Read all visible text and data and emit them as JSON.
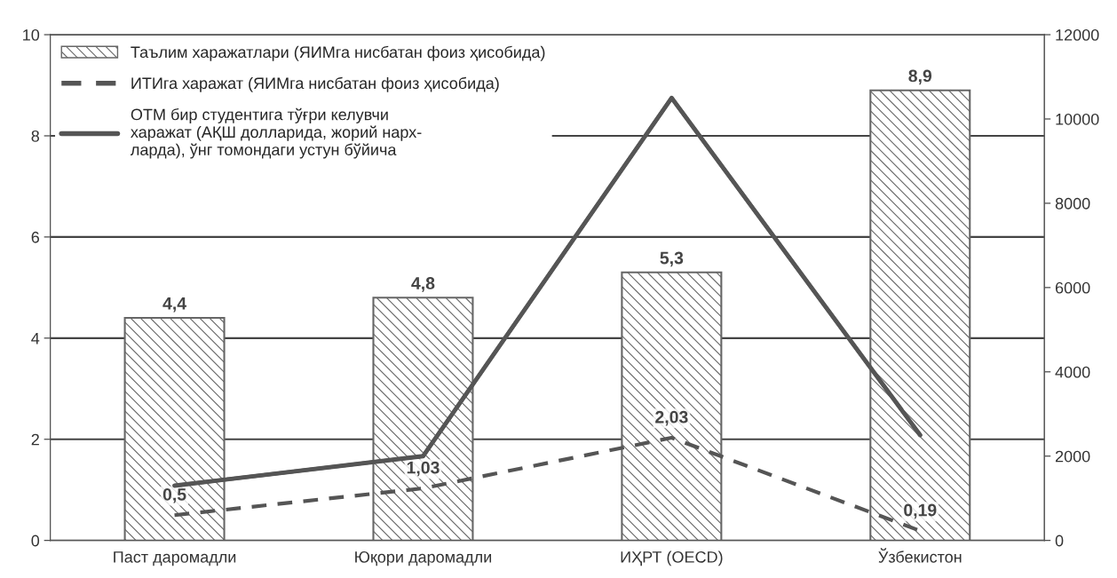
{
  "chart_data": {
    "type": "bar",
    "categories": [
      "Паст даромадли",
      "Юқори даромадли",
      "ИҲРТ (OECD)",
      "Ўзбекистон"
    ],
    "series": [
      {
        "name": "Таълим харажатлари (ЯИМга нисбатан фоиз ҳисобида)",
        "type": "bar",
        "color": "#666666",
        "values": [
          4.4,
          4.8,
          5.3,
          8.9
        ],
        "value_labels": [
          "4,4",
          "4,8",
          "5,3",
          "8,9"
        ]
      },
      {
        "name": "ИТИга харажат (ЯИМга нисбатан фоиз ҳисобида)",
        "type": "line",
        "line_style": "dashed",
        "color": "#555555",
        "values": [
          0.5,
          1.03,
          2.03,
          0.19
        ],
        "value_labels": [
          "0,5",
          "1,03",
          "2,03",
          "0,19"
        ]
      },
      {
        "name": "ОТМ бир студентига тўғри келувчи\nхаражат (АҚШ долларида, жорий нарх-\nларда), ўнг томондаги устун бўйича",
        "type": "line",
        "line_style": "solid",
        "axis": "y2",
        "color": "#555555",
        "values": [
          1300,
          2000,
          10500,
          2500
        ]
      }
    ],
    "ylim": [
      0,
      10
    ],
    "yticks": [
      0,
      2,
      4,
      6,
      8,
      10
    ],
    "y2lim": [
      0,
      12000
    ],
    "y2ticks": [
      0,
      2000,
      4000,
      6000,
      8000,
      10000,
      12000
    ],
    "grid": "y",
    "legend": "top left",
    "marker": "none"
  }
}
